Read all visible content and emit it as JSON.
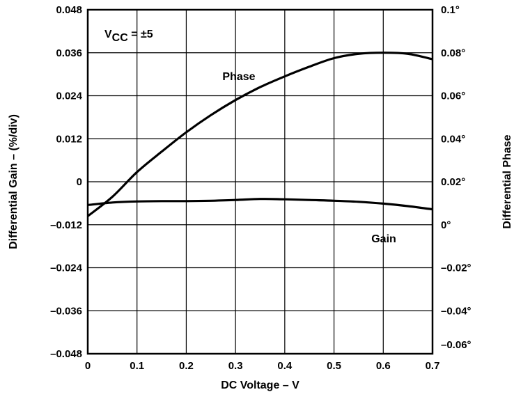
{
  "chart_data": {
    "type": "line",
    "title": "",
    "xlabel": "DC Voltage – V",
    "ylabel_left": "Differential Gain – (%/div)",
    "ylabel_right": "Differential Phase",
    "xlim": [
      0,
      0.7
    ],
    "ylim_left": [
      -0.048,
      0.048
    ],
    "ylim_right": [
      -0.06,
      0.1
    ],
    "grid": true,
    "x_ticks": [
      "0",
      "0.1",
      "0.2",
      "0.3",
      "0.4",
      "0.5",
      "0.6",
      "0.7"
    ],
    "y_left_ticks": [
      "0.048",
      "0.036",
      "0.024",
      "0.012",
      "0",
      "–0.012",
      "–0.024",
      "–0.036",
      "–0.048"
    ],
    "y_right_ticks": [
      "0.1°",
      "0.08°",
      "0.06°",
      "0.04°",
      "0.02°",
      "0°",
      "–0.02°",
      "–0.04°",
      "–0.06°"
    ],
    "annotation": {
      "main": "V",
      "sub": "CC",
      "rest": " = ±5"
    },
    "series": [
      {
        "name": "Phase",
        "axis": "right",
        "x": [
          0,
          0.05,
          0.1,
          0.15,
          0.2,
          0.25,
          0.3,
          0.35,
          0.4,
          0.45,
          0.5,
          0.55,
          0.6,
          0.65,
          0.7
        ],
        "y": [
          0.004,
          0.013,
          0.0245,
          0.034,
          0.043,
          0.051,
          0.058,
          0.064,
          0.069,
          0.0735,
          0.0775,
          0.0795,
          0.08,
          0.0795,
          0.077
        ]
      },
      {
        "name": "Gain",
        "axis": "left",
        "x": [
          0,
          0.05,
          0.1,
          0.15,
          0.2,
          0.25,
          0.3,
          0.35,
          0.4,
          0.45,
          0.5,
          0.55,
          0.6,
          0.65,
          0.7
        ],
        "y": [
          -0.0065,
          -0.0058,
          -0.0055,
          -0.0054,
          -0.0054,
          -0.0053,
          -0.0051,
          -0.0048,
          -0.0049,
          -0.0051,
          -0.0053,
          -0.0056,
          -0.0061,
          -0.0068,
          -0.0077
        ]
      }
    ]
  }
}
